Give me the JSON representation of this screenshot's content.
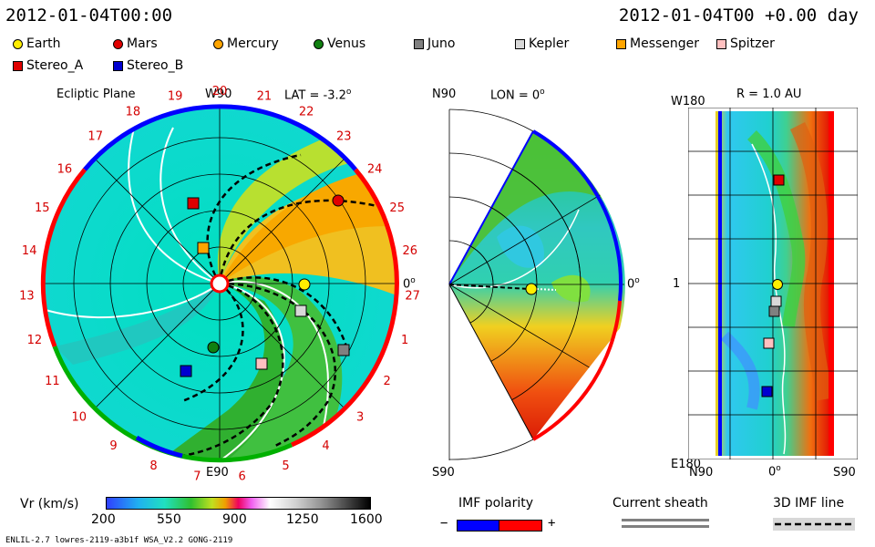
{
  "header": {
    "timestamp_left": "2012-01-04T00:00",
    "timestamp_right": "2012-01-04T00 +0.00 day"
  },
  "legend": [
    {
      "label": "Earth",
      "shape": "circle",
      "color": "#ffee00"
    },
    {
      "label": "Mars",
      "shape": "circle",
      "color": "#e00000"
    },
    {
      "label": "Mercury",
      "shape": "circle",
      "color": "#ffa500"
    },
    {
      "label": "Venus",
      "shape": "circle",
      "color": "#108010"
    },
    {
      "label": "Juno",
      "shape": "square",
      "color": "#808080"
    },
    {
      "label": "Kepler",
      "shape": "square",
      "color": "#d8d8d8"
    },
    {
      "label": "Messenger",
      "shape": "square",
      "color": "#ffa500"
    },
    {
      "label": "Spitzer",
      "shape": "square",
      "color": "#ffc0c0"
    },
    {
      "label": "Stereo_A",
      "shape": "square",
      "color": "#e00000"
    },
    {
      "label": "Stereo_B",
      "shape": "square",
      "color": "#0000d0"
    }
  ],
  "ecliptic": {
    "title": "Ecliptic Plane",
    "top_label": "W90",
    "bottom_label": "E90",
    "right_label": "0",
    "lat_label": "LAT = -3.2",
    "degree_mark": "o",
    "carrington": [
      "20",
      "21",
      "22",
      "23",
      "24",
      "25",
      "26",
      "27",
      "1",
      "2",
      "3",
      "4",
      "5",
      "6",
      "7",
      "8",
      "9",
      "10",
      "11",
      "12",
      "13",
      "14",
      "15",
      "16",
      "17",
      "18",
      "19"
    ]
  },
  "meridional": {
    "lon_label": "LON = 0",
    "top_label": "N90",
    "bottom_label": "S90",
    "right_label": "0",
    "degree_mark": "o"
  },
  "map": {
    "r_label": "R = 1.0 AU",
    "top_left": "W180",
    "bottom_left": "E180",
    "mid_left": "1",
    "x_left": "N90",
    "x_mid": "0",
    "x_right": "S90",
    "degree_mark": "o"
  },
  "colorbar": {
    "title": "Vr (km/s)",
    "ticks": [
      "200",
      "550",
      "900",
      "1250",
      "1600"
    ]
  },
  "imf_polarity": {
    "title": "IMF polarity",
    "minus": "−",
    "plus": "+",
    "neg_color": "#0000ff",
    "pos_color": "#ff0000"
  },
  "current_sheath": {
    "title": "Current sheath"
  },
  "imf_line": {
    "title": "3D IMF line"
  },
  "footer": {
    "left": "ENLIL-2.7 lowres-2119-a3b1f WSA_V2.2 GONG-2119"
  }
}
